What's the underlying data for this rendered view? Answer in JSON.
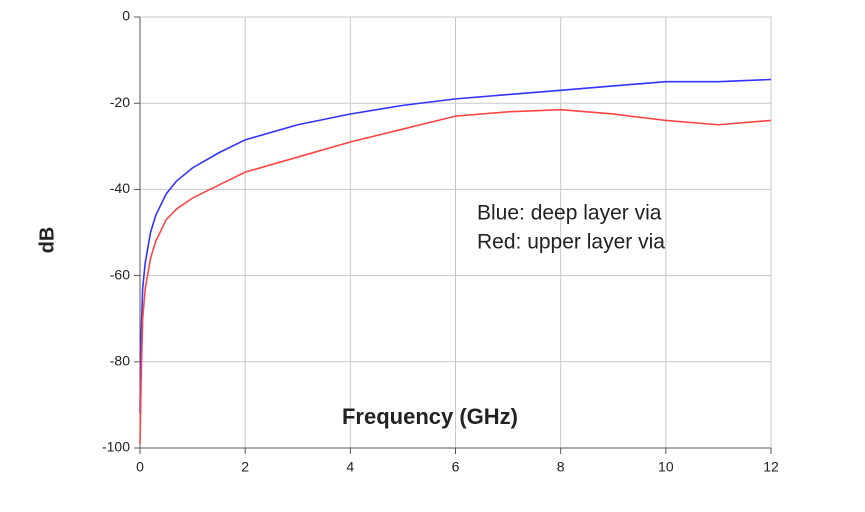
{
  "chart_data": {
    "type": "line",
    "x_label": "Frequency (GHz)",
    "y_label": "dB",
    "x": [
      0,
      0.02,
      0.05,
      0.1,
      0.2,
      0.3,
      0.5,
      0.7,
      1,
      1.5,
      2,
      3,
      4,
      5,
      6,
      7,
      8,
      9,
      10,
      11,
      12
    ],
    "series": [
      {
        "name": "Blue: deep layer via",
        "color": "#3333ff",
        "values": [
          -92,
          -75,
          -63,
          -57,
          -50,
          -46,
          -41,
          -38,
          -35,
          -31.5,
          -28.5,
          -25,
          -22.5,
          -20.5,
          -19,
          -18,
          -17,
          -16,
          -15,
          -15,
          -14.5
        ]
      },
      {
        "name": "Red: upper layer via",
        "color": "#ff4545",
        "values": [
          -99,
          -85,
          -70,
          -63,
          -56,
          -52,
          -47,
          -44.5,
          -42,
          -39,
          -36,
          -32.5,
          -29,
          -26,
          -23,
          -22,
          -21.5,
          -22.5,
          -24,
          -25,
          -24
        ]
      }
    ],
    "xlim": [
      0,
      12
    ],
    "xticks": [
      0,
      2,
      4,
      6,
      8,
      10,
      12
    ],
    "ylim": [
      -100,
      0
    ],
    "yticks": [
      -100,
      -80,
      -60,
      -40,
      -20,
      0
    ],
    "grid": true
  }
}
